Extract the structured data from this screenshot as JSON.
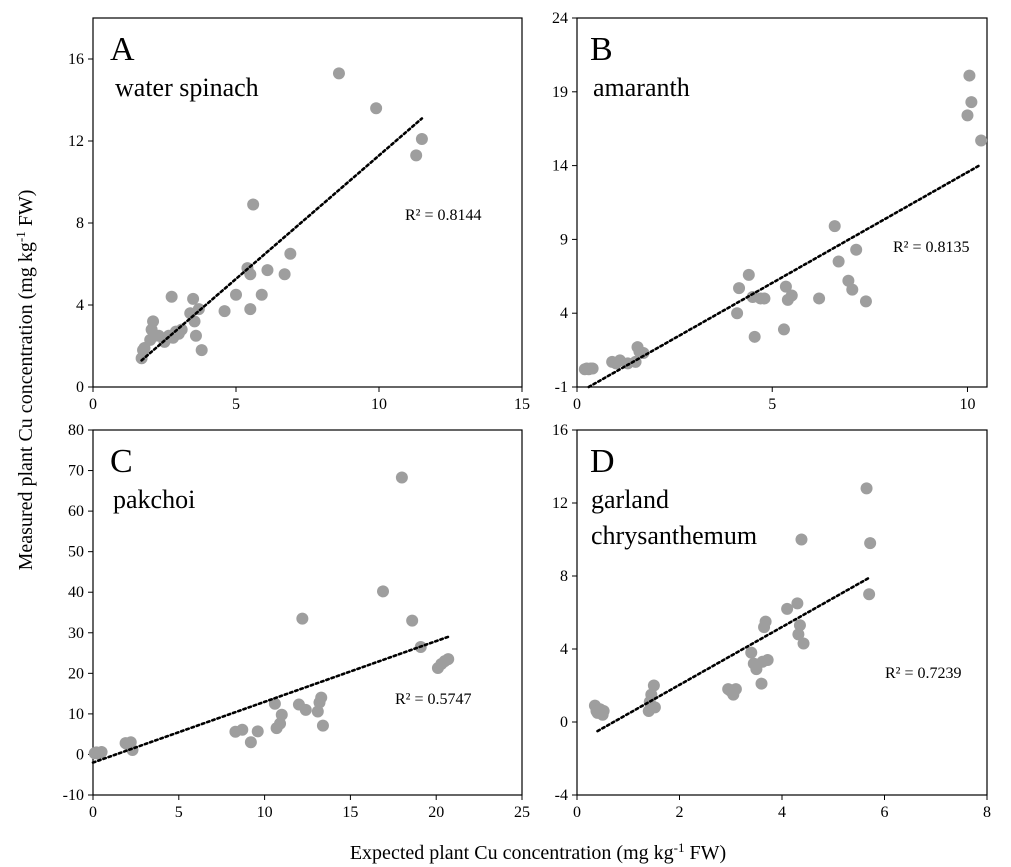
{
  "figure": {
    "xlabel": "Expected plant Cu concentration (mg kg-1 FW)",
    "ylabel": "Measured plant Cu concentration (mg kg-1 FW)",
    "point_color": "#9e9e9e",
    "trend_color": "#000000"
  },
  "chart_data": [
    {
      "type": "scatter",
      "letter": "A",
      "subtitle": [
        "water spinach"
      ],
      "r2_label": "R² = 0.8144",
      "xlim": [
        0,
        15
      ],
      "ylim": [
        0,
        18
      ],
      "xticks": [
        0,
        5,
        10,
        15
      ],
      "yticks": [
        0,
        4,
        8,
        12,
        16
      ],
      "trend": {
        "x": [
          1.7,
          11.5
        ],
        "y": [
          1.3,
          13.1
        ]
      },
      "x": [
        1.7,
        1.75,
        1.8,
        2.0,
        2.05,
        2.1,
        2.15,
        2.3,
        2.5,
        2.65,
        2.75,
        2.8,
        2.9,
        3.0,
        3.1,
        3.4,
        3.5,
        3.55,
        3.6,
        3.7,
        3.8,
        4.6,
        5.0,
        5.4,
        5.5,
        5.5,
        5.6,
        5.9,
        6.1,
        6.7,
        6.9,
        8.6,
        9.9,
        11.3,
        11.5
      ],
      "y": [
        1.4,
        1.8,
        1.9,
        2.3,
        2.8,
        3.2,
        2.5,
        2.5,
        2.2,
        2.5,
        4.4,
        2.4,
        2.7,
        2.6,
        2.8,
        3.6,
        4.3,
        3.2,
        2.5,
        3.8,
        1.8,
        3.7,
        4.5,
        5.8,
        3.8,
        5.5,
        8.9,
        4.5,
        5.7,
        5.5,
        6.5,
        15.3,
        13.6,
        11.3,
        12.1
      ]
    },
    {
      "type": "scatter",
      "letter": "B",
      "subtitle": [
        "amaranth"
      ],
      "r2_label": "R² = 0.8135",
      "xlim": [
        0,
        10.5
      ],
      "ylim": [
        -1,
        24
      ],
      "xticks": [
        0,
        5,
        10
      ],
      "yticks": [
        -1,
        4,
        9,
        14,
        19,
        24
      ],
      "trend": {
        "x": [
          0.3,
          10.3
        ],
        "y": [
          -1.0,
          14.0
        ]
      },
      "x": [
        0.2,
        0.25,
        0.3,
        0.35,
        0.4,
        0.9,
        1.0,
        1.1,
        1.3,
        1.5,
        1.55,
        1.6,
        1.7,
        4.1,
        4.15,
        4.4,
        4.5,
        4.55,
        4.7,
        4.8,
        5.3,
        5.35,
        5.4,
        5.5,
        6.2,
        6.6,
        6.7,
        6.95,
        7.05,
        7.15,
        7.4,
        10.0,
        10.05,
        10.1,
        10.35
      ],
      "y": [
        0.2,
        0.25,
        0.2,
        0.25,
        0.25,
        0.7,
        0.6,
        0.8,
        0.6,
        0.7,
        1.7,
        1.4,
        1.3,
        4.0,
        5.7,
        6.6,
        5.1,
        2.4,
        5.0,
        5.0,
        2.9,
        5.8,
        4.9,
        5.2,
        5.0,
        9.9,
        7.5,
        6.2,
        5.6,
        8.3,
        4.8,
        17.4,
        20.1,
        18.3,
        15.7
      ]
    },
    {
      "type": "scatter",
      "letter": "C",
      "subtitle": [
        "pakchoi"
      ],
      "r2_label": "R² = 0.5747",
      "xlim": [
        0,
        25
      ],
      "ylim": [
        -10,
        80
      ],
      "xticks": [
        0,
        5,
        10,
        15,
        20,
        25
      ],
      "yticks": [
        -10,
        0,
        10,
        20,
        30,
        40,
        50,
        60,
        70,
        80
      ],
      "trend": {
        "x": [
          0.0,
          20.7
        ],
        "y": [
          -2.0,
          29.0
        ]
      },
      "x": [
        0.1,
        0.2,
        0.3,
        0.5,
        1.9,
        2.0,
        2.2,
        2.3,
        8.3,
        8.7,
        9.2,
        9.6,
        10.6,
        10.7,
        10.9,
        11.0,
        12.0,
        12.2,
        12.4,
        13.1,
        13.2,
        13.3,
        13.4,
        16.9,
        18.0,
        18.6,
        19.1,
        20.1,
        20.3,
        20.5,
        20.7
      ],
      "y": [
        0.3,
        0.5,
        0.2,
        0.6,
        2.8,
        2.5,
        3.0,
        1.1,
        5.6,
        6.1,
        3.0,
        5.7,
        12.5,
        6.5,
        7.6,
        9.8,
        12.3,
        33.5,
        11.0,
        10.6,
        12.8,
        14.0,
        7.1,
        40.2,
        68.3,
        33.0,
        26.5,
        21.3,
        22.3,
        23.0,
        23.5
      ]
    },
    {
      "type": "scatter",
      "letter": "D",
      "subtitle": [
        "garland",
        "chrysanthemum"
      ],
      "r2_label": "R² = 0.7239",
      "xlim": [
        0,
        8
      ],
      "ylim": [
        -4,
        16
      ],
      "xticks": [
        0,
        2,
        4,
        6,
        8
      ],
      "yticks": [
        -4,
        0,
        4,
        8,
        12,
        16
      ],
      "trend": {
        "x": [
          0.4,
          5.7
        ],
        "y": [
          -0.5,
          7.9
        ]
      },
      "x": [
        0.35,
        0.38,
        0.4,
        0.45,
        0.5,
        0.52,
        1.4,
        1.42,
        1.45,
        1.5,
        1.52,
        2.95,
        3.0,
        3.05,
        3.1,
        3.4,
        3.45,
        3.5,
        3.6,
        3.62,
        3.65,
        3.68,
        3.72,
        4.1,
        4.3,
        4.32,
        4.35,
        4.38,
        4.42,
        5.65,
        5.7,
        5.72
      ],
      "y": [
        0.9,
        0.6,
        0.5,
        0.7,
        0.4,
        0.6,
        0.6,
        1.1,
        1.5,
        2.0,
        0.8,
        1.8,
        1.7,
        1.5,
        1.8,
        3.8,
        3.2,
        2.9,
        2.1,
        3.3,
        5.2,
        5.5,
        3.4,
        6.2,
        6.5,
        4.8,
        5.3,
        10.0,
        4.3,
        12.8,
        7.0,
        9.8
      ]
    }
  ]
}
